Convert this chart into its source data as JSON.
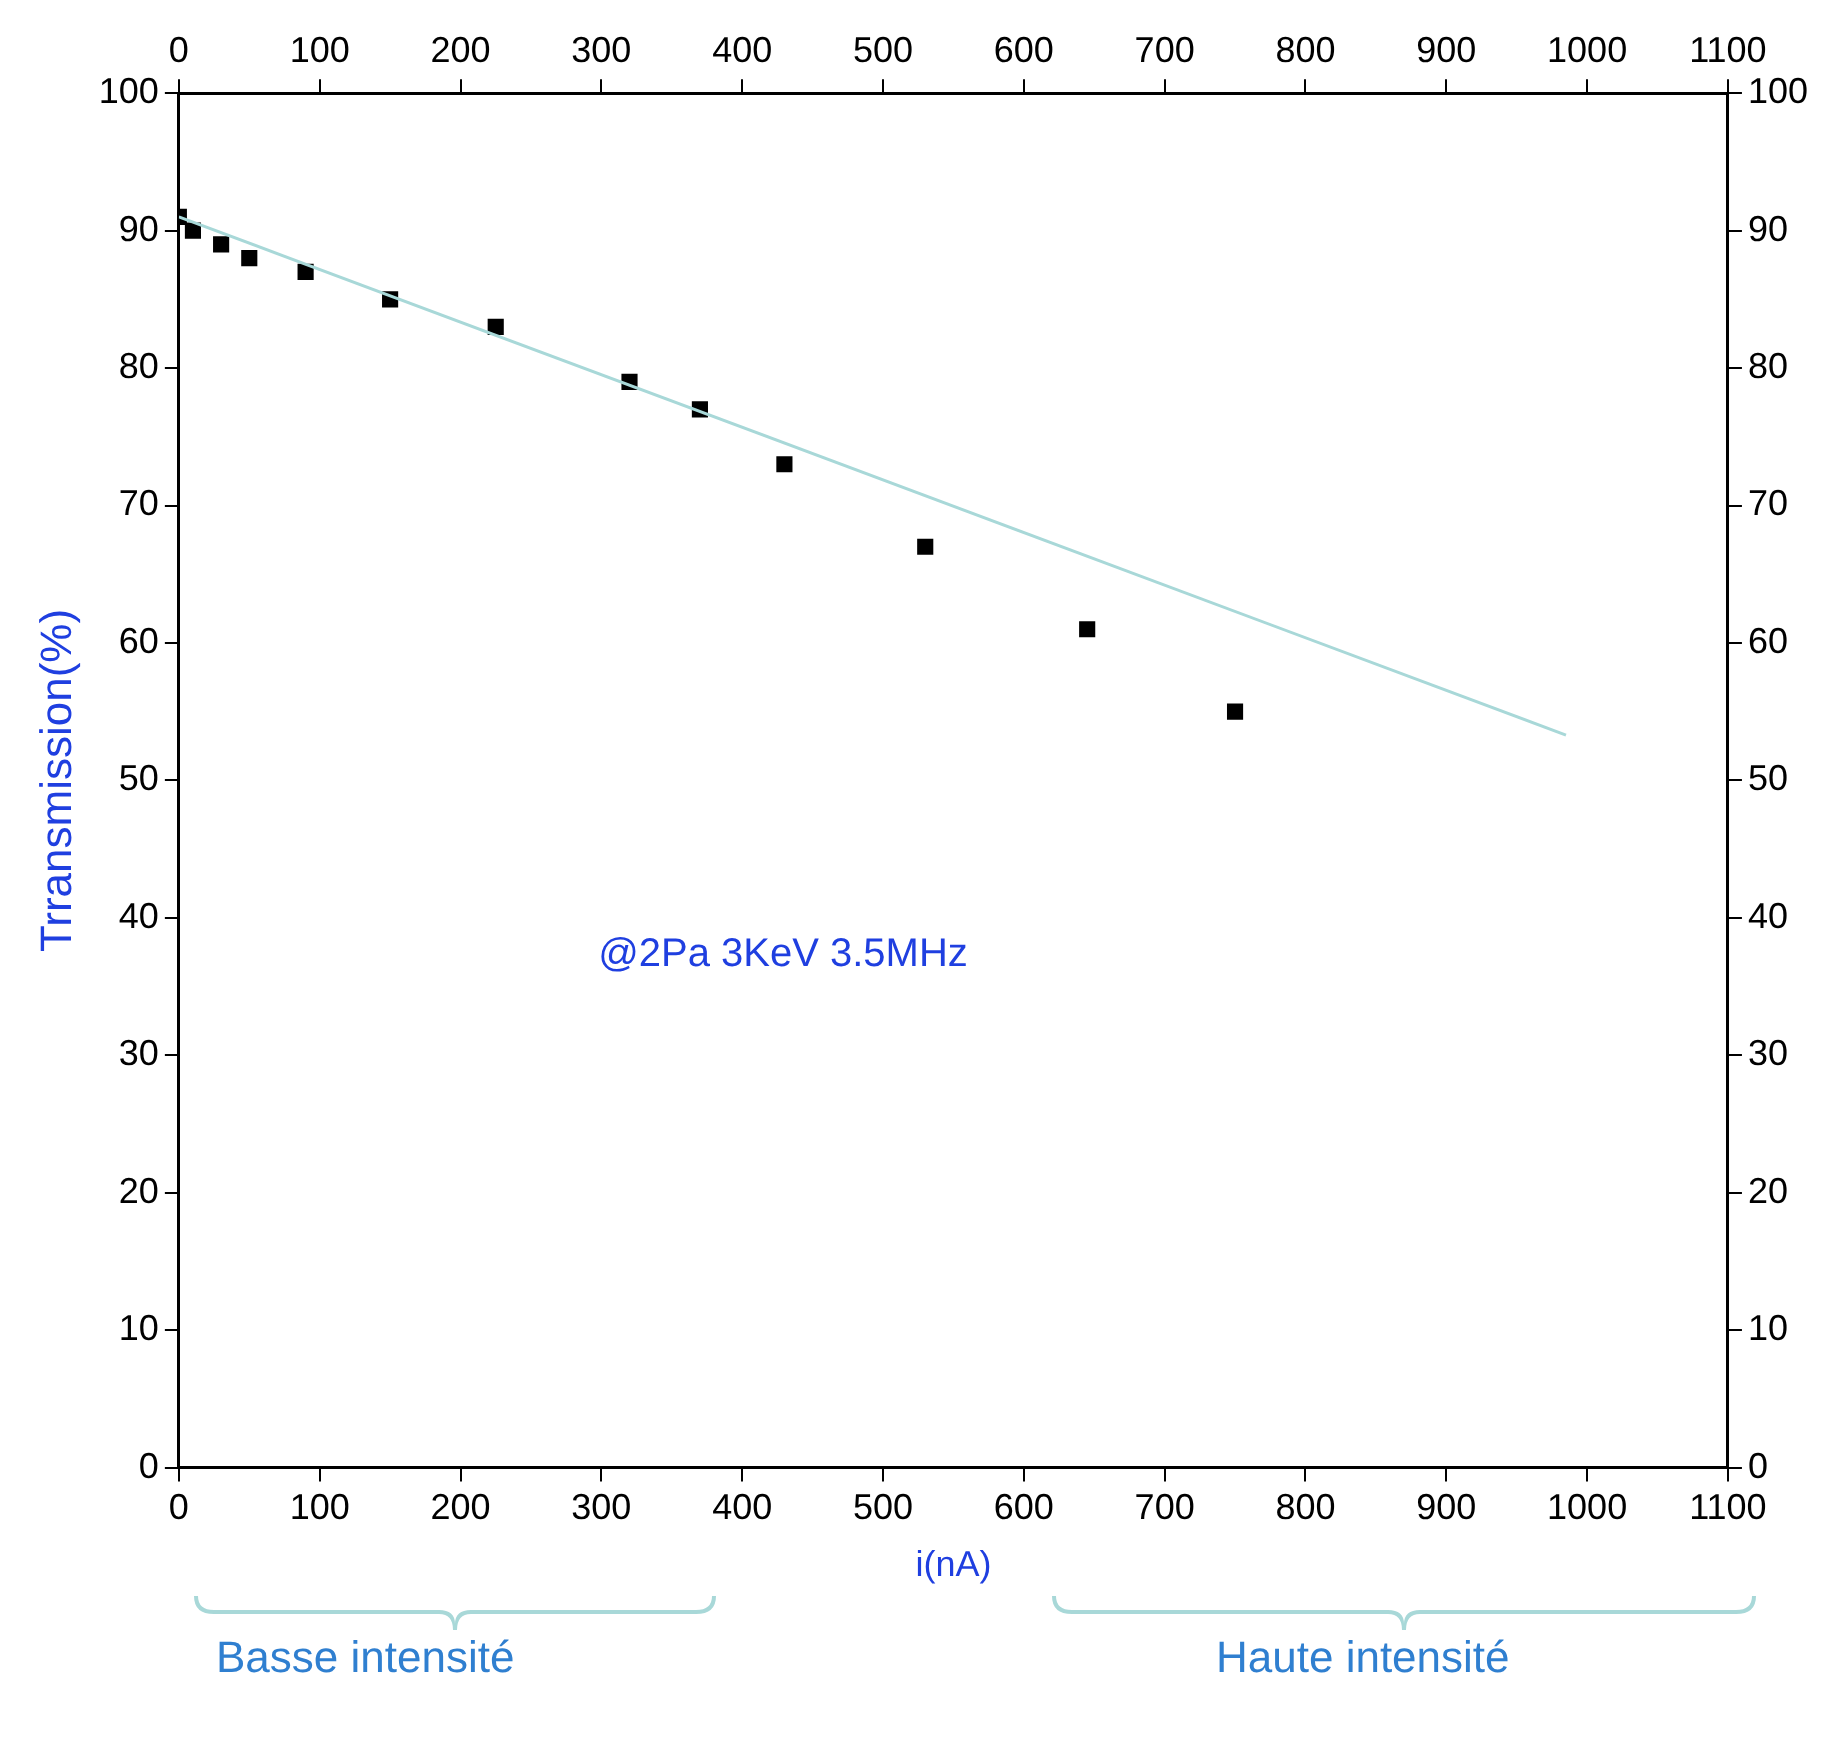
{
  "chart_data": {
    "type": "scatter",
    "xlabel": "i(nA)",
    "ylabel": "Trransmission(%)",
    "annotations": [
      "@2Pa 3KeV 3.5MHz",
      "Basse intensité",
      "Haute intensité"
    ],
    "series": [
      {
        "type": "scatter",
        "color": "#000000",
        "marker": "square",
        "x": [
          0,
          10,
          30,
          50,
          90,
          150,
          225,
          320,
          370,
          430,
          530,
          645,
          750
        ],
        "values": [
          91,
          90,
          89,
          88,
          87,
          85,
          83,
          79,
          77,
          73,
          67,
          61,
          55
        ]
      },
      {
        "type": "line",
        "color": "#a8d8d8",
        "marker": "none",
        "line_style": "solid",
        "x": [
          0,
          985
        ],
        "values": [
          91,
          53.3
        ]
      }
    ],
    "xlim": [
      0,
      1100
    ],
    "xticks": [
      0,
      100,
      200,
      300,
      400,
      500,
      600,
      700,
      800,
      900,
      1000,
      1100
    ],
    "x2lim": [
      0,
      1100
    ],
    "x2ticks": [
      0,
      100,
      200,
      300,
      400,
      500,
      600,
      700,
      800,
      900,
      1000,
      1100
    ],
    "ylim": [
      0,
      100
    ],
    "yticks": [
      0,
      10,
      20,
      30,
      40,
      50,
      60,
      70,
      80,
      90,
      100
    ],
    "y2lim": [
      0,
      100
    ],
    "y2ticks": [
      0,
      10,
      20,
      30,
      40,
      50,
      60,
      70,
      80,
      90,
      100
    ],
    "grid": false,
    "legend": false
  }
}
